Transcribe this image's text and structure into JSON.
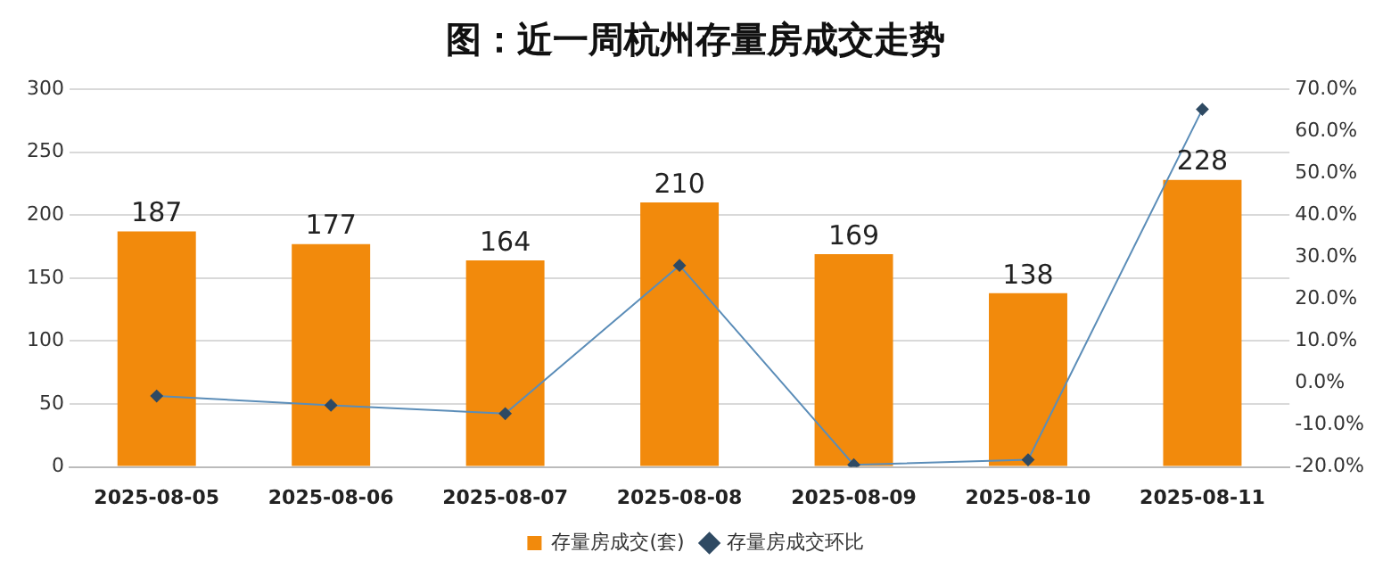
{
  "chart_data": {
    "type": "bar",
    "title": "图：近一周杭州存量房成交走势",
    "categories": [
      "2025-08-05",
      "2025-08-06",
      "2025-08-07",
      "2025-08-08",
      "2025-08-09",
      "2025-08-10",
      "2025-08-11"
    ],
    "series": [
      {
        "name": "存量房成交(套)",
        "color": "#f28a0c",
        "values": [
          187,
          177,
          164,
          210,
          169,
          138,
          228
        ],
        "value_labels": [
          "187",
          "177",
          "164",
          "210",
          "169",
          "138",
          "228"
        ]
      },
      {
        "name": "存量房成交环比",
        "type": "line",
        "axis": "y2",
        "color": "#5b8db8",
        "values": [
          -3.1,
          -5.3,
          -7.3,
          28.0,
          -19.5,
          -18.3,
          65.2
        ]
      }
    ],
    "ylim": [
      0,
      300
    ],
    "yticks": [
      0,
      50,
      100,
      150,
      200,
      250,
      300
    ],
    "y2lim": [
      -20,
      70
    ],
    "y2ticks": [
      {
        "value": -20,
        "label": "-20.0%"
      },
      {
        "value": -10,
        "label": "-10.0%"
      },
      {
        "value": 0,
        "label": "0.0%"
      },
      {
        "value": 10,
        "label": "10.0%"
      },
      {
        "value": 20,
        "label": "20.0%"
      },
      {
        "value": 30,
        "label": "30.0%"
      },
      {
        "value": 40,
        "label": "40.0%"
      },
      {
        "value": 50,
        "label": "50.0%"
      },
      {
        "value": 60,
        "label": "60.0%"
      },
      {
        "value": 70,
        "label": "70.0%"
      }
    ],
    "grid": "y",
    "legend": "bottom",
    "marker": "diamond",
    "line_style": "solid"
  }
}
